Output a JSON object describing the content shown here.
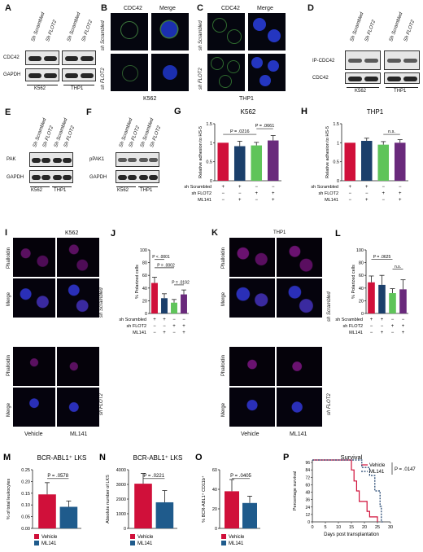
{
  "panels": {
    "A": {
      "letter": "A",
      "col_headers": [
        "Sh Scrambled",
        "Sh FLOT2",
        "Sh Scrambled",
        "Sh FLOT2"
      ],
      "rows": [
        "CDC42",
        "GAPDH"
      ],
      "groups": [
        "K562",
        "THP1"
      ]
    },
    "B": {
      "letter": "B",
      "col_headers": [
        "CDC42",
        "Merge"
      ],
      "row_labels": [
        "sh Scrambled",
        "sh FLOT2"
      ],
      "group": "K562",
      "scale": "10µm"
    },
    "C": {
      "letter": "C",
      "col_headers": [
        "CDC42",
        "Merge"
      ],
      "row_labels": [
        "sh Scrambled",
        "sh FLOT2"
      ],
      "group": "THP1",
      "scale": "10µm"
    },
    "D": {
      "letter": "D",
      "col_headers": [
        "Sh Scrambled",
        "Sh FLOT2",
        "Sh Scrambled",
        "Sh FLOT2"
      ],
      "rows": [
        "IP-CDC42",
        "CDC42"
      ],
      "groups": [
        "K562",
        "THP1"
      ]
    },
    "E": {
      "letter": "E",
      "col_headers": [
        "Sh Scrambled",
        "Sh FLOT2",
        "Sh Scrambled",
        "Sh FLOT2"
      ],
      "rows": [
        "PAK",
        "GAPDH"
      ],
      "groups": [
        "K562",
        "THP1"
      ]
    },
    "F": {
      "letter": "F",
      "col_headers": [
        "Sh Scrambled",
        "Sh FLOT2",
        "Sh Scrambled",
        "Sh FLOT2"
      ],
      "rows": [
        "pPAK1",
        "GAPDH"
      ],
      "groups": [
        "K562",
        "THP1"
      ]
    },
    "I": {
      "letter": "I",
      "group": "K562",
      "row_labels": [
        "Phalloidin",
        "Merge",
        "Phalloidin",
        "Merge"
      ],
      "side_labels": [
        "sh Scrambled",
        "sh FLOT2"
      ],
      "cols": [
        "Vehicle",
        "ML141"
      ],
      "scale": "10µm"
    },
    "K": {
      "letter": "K",
      "group": "THP1",
      "row_labels": [
        "Phalloidin",
        "Merge",
        "Phalloidin",
        "Merge"
      ],
      "side_labels": [
        "sh Scrambled",
        "sh FLOT2"
      ],
      "cols": [
        "Vehicle",
        "ML141"
      ],
      "scale": "10µm"
    }
  },
  "treatment_table": {
    "rows": [
      "sh Scrambled",
      "sh FLOT2",
      "ML141"
    ],
    "values": [
      [
        "+",
        "+",
        "−",
        "−"
      ],
      [
        "−",
        "−",
        "+",
        "+"
      ],
      [
        "−",
        "+",
        "−",
        "+"
      ]
    ]
  },
  "colors": {
    "red": "#d0103a",
    "blue": "#1f5b8c",
    "green": "#5fc45a",
    "purple": "#6a2a7c",
    "navy": "#1b3f6b"
  },
  "chart_data": [
    {
      "id": "G",
      "letter": "G",
      "type": "bar",
      "title": "K562",
      "ylabel": "Relative adhesion to HS-5",
      "ylim": [
        0,
        1.5
      ],
      "yticks": [
        "0",
        "0.5",
        "1",
        "1.5"
      ],
      "values": [
        1.0,
        0.91,
        0.93,
        1.06
      ],
      "errors": [
        0.0,
        0.13,
        0.08,
        0.13
      ],
      "annotations": [
        "P = .0216",
        "P = .0661"
      ]
    },
    {
      "id": "H",
      "letter": "H",
      "type": "bar",
      "title": "THP1",
      "ylabel": "Relative adhesion to HS-5",
      "ylim": [
        0,
        1.5
      ],
      "yticks": [
        "0",
        "0.5",
        "1",
        "1.5"
      ],
      "values": [
        1.0,
        1.05,
        0.95,
        1.0
      ],
      "errors": [
        0.0,
        0.07,
        0.08,
        0.08
      ],
      "annotations": [
        "n.s."
      ]
    },
    {
      "id": "J",
      "letter": "J",
      "type": "bar",
      "title": "",
      "ylabel": "% Polarized cells",
      "ylim": [
        0,
        100
      ],
      "yticks": [
        "0",
        "20",
        "40",
        "60",
        "80",
        "100"
      ],
      "values": [
        48,
        24,
        17,
        30
      ],
      "errors": [
        9,
        7,
        5,
        7
      ],
      "annotations": [
        "P < .0001",
        "P = .0002",
        "P = .0192"
      ]
    },
    {
      "id": "L",
      "letter": "L",
      "type": "bar",
      "title": "",
      "ylabel": "% Polarized cells",
      "ylim": [
        0,
        100
      ],
      "yticks": [
        "0",
        "20",
        "40",
        "60",
        "80",
        "100"
      ],
      "values": [
        49,
        45,
        32,
        38
      ],
      "errors": [
        10,
        15,
        7,
        15
      ],
      "annotations": [
        "P = .0625",
        "n.s."
      ]
    },
    {
      "id": "M",
      "letter": "M",
      "type": "bar",
      "title": "BCR-ABL1⁺ LKS",
      "ylabel": "% of total leukocytes",
      "ylim": [
        0,
        0.25
      ],
      "yticks": [
        "0.00",
        "0.05",
        "0.10",
        "0.15",
        "0.20",
        "0.25"
      ],
      "categories": [
        "Vehicle",
        "ML141"
      ],
      "values": [
        0.145,
        0.092
      ],
      "errors": [
        0.05,
        0.025
      ],
      "annotations": [
        "P = .0578"
      ]
    },
    {
      "id": "N",
      "letter": "N",
      "type": "bar",
      "title": "BCR-ABL1⁺ LKS",
      "ylabel": "Absolute number of LKS",
      "ylim": [
        0,
        4000
      ],
      "yticks": [
        "0",
        "1000",
        "2000",
        "3000",
        "4000"
      ],
      "categories": [
        "Vehicle",
        "ML141"
      ],
      "values": [
        3050,
        1780
      ],
      "errors": [
        700,
        800
      ],
      "annotations": [
        "P = .0221"
      ]
    },
    {
      "id": "O",
      "letter": "O",
      "type": "bar",
      "title": "",
      "ylabel": "% BCR-ABL1⁺ CD11b⁺",
      "ylim": [
        0,
        60
      ],
      "yticks": [
        "0",
        "20",
        "40",
        "60"
      ],
      "categories": [
        "Vehicle",
        "ML141"
      ],
      "values": [
        38,
        26
      ],
      "errors": [
        12,
        7
      ],
      "annotations": [
        "P = .0405"
      ]
    },
    {
      "id": "P",
      "letter": "P",
      "type": "line",
      "title": "Survival",
      "xlabel": "Days post transplantation",
      "ylabel": "Percentage survival",
      "xlim": [
        0,
        30
      ],
      "ylim": [
        0,
        100
      ],
      "xticks": [
        "0",
        "5",
        "10",
        "15",
        "20",
        "25",
        "30"
      ],
      "yticks": [
        "0",
        "12",
        "24",
        "36",
        "48",
        "60",
        "72",
        "84",
        "96"
      ],
      "series": [
        {
          "name": "Vehicle",
          "x": [
            0,
            15,
            15,
            16,
            16,
            17,
            17,
            18,
            18,
            21,
            21,
            22,
            22,
            25,
            25
          ],
          "y": [
            100,
            100,
            84,
            84,
            66,
            66,
            50,
            50,
            33,
            33,
            17,
            17,
            8,
            8,
            0
          ]
        },
        {
          "name": "ML141",
          "x": [
            0,
            19,
            19,
            22,
            22,
            24,
            24,
            26,
            26,
            26.5,
            26.5,
            27
          ],
          "y": [
            100,
            100,
            88,
            88,
            75,
            75,
            50,
            50,
            25,
            25,
            0,
            0
          ]
        }
      ],
      "annotations": [
        "P = .0147"
      ]
    }
  ]
}
